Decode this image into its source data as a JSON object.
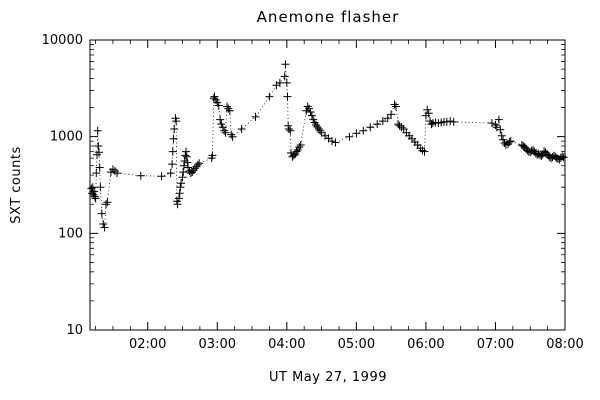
{
  "colors": {
    "foreground": "#000000",
    "background": "#ffffff"
  },
  "chart_data": {
    "type": "scatter",
    "title": "Anemone flasher",
    "xlabel": "UT May 27, 1999",
    "ylabel": "SXT counts",
    "y_scale": "log",
    "xlim": [
      1.17,
      8.0
    ],
    "ylim": [
      10,
      10000
    ],
    "x_ticks": [
      2,
      3,
      4,
      5,
      6,
      7,
      8
    ],
    "x_tick_labels": [
      "02:00",
      "03:00",
      "04:00",
      "05:00",
      "06:00",
      "07:00",
      "08:00"
    ],
    "y_ticks": [
      10,
      100,
      1000,
      10000
    ],
    "y_tick_labels": [
      "10",
      "100",
      "1000",
      "10000"
    ],
    "marker": "plus",
    "line_style": "dotted",
    "legend": "none",
    "grid": false,
    "points": [
      [
        1.19,
        290
      ],
      [
        1.2,
        260
      ],
      [
        1.21,
        300
      ],
      [
        1.22,
        250
      ],
      [
        1.23,
        270
      ],
      [
        1.24,
        240
      ],
      [
        1.25,
        230
      ],
      [
        1.26,
        420
      ],
      [
        1.27,
        650
      ],
      [
        1.28,
        1150
      ],
      [
        1.29,
        800
      ],
      [
        1.3,
        690
      ],
      [
        1.31,
        480
      ],
      [
        1.32,
        300
      ],
      [
        1.34,
        160
      ],
      [
        1.36,
        125
      ],
      [
        1.38,
        115
      ],
      [
        1.4,
        200
      ],
      [
        1.42,
        210
      ],
      [
        1.47,
        430
      ],
      [
        1.5,
        460
      ],
      [
        1.53,
        440
      ],
      [
        1.56,
        420
      ],
      [
        1.9,
        395
      ],
      [
        2.2,
        390
      ],
      [
        2.33,
        420
      ],
      [
        2.35,
        520
      ],
      [
        2.36,
        700
      ],
      [
        2.37,
        950
      ],
      [
        2.38,
        1200
      ],
      [
        2.4,
        1550
      ],
      [
        2.41,
        1450
      ],
      [
        2.42,
        215
      ],
      [
        2.43,
        200
      ],
      [
        2.45,
        230
      ],
      [
        2.46,
        260
      ],
      [
        2.47,
        300
      ],
      [
        2.48,
        330
      ],
      [
        2.5,
        380
      ],
      [
        2.51,
        430
      ],
      [
        2.52,
        500
      ],
      [
        2.53,
        560
      ],
      [
        2.54,
        640
      ],
      [
        2.55,
        700
      ],
      [
        2.56,
        620
      ],
      [
        2.57,
        540
      ],
      [
        2.58,
        480
      ],
      [
        2.6,
        440
      ],
      [
        2.62,
        420
      ],
      [
        2.64,
        430
      ],
      [
        2.66,
        450
      ],
      [
        2.68,
        470
      ],
      [
        2.7,
        490
      ],
      [
        2.72,
        510
      ],
      [
        2.74,
        530
      ],
      [
        2.92,
        600
      ],
      [
        2.93,
        640
      ],
      [
        2.95,
        2500
      ],
      [
        2.96,
        2600
      ],
      [
        2.98,
        2400
      ],
      [
        3.0,
        2250
      ],
      [
        3.02,
        2100
      ],
      [
        3.04,
        1500
      ],
      [
        3.06,
        1350
      ],
      [
        3.08,
        1250
      ],
      [
        3.1,
        1150
      ],
      [
        3.12,
        1100
      ],
      [
        3.14,
        2050
      ],
      [
        3.16,
        1950
      ],
      [
        3.18,
        1850
      ],
      [
        3.2,
        1050
      ],
      [
        3.22,
        1000
      ],
      [
        3.35,
        1200
      ],
      [
        3.55,
        1600
      ],
      [
        3.75,
        2600
      ],
      [
        3.85,
        3400
      ],
      [
        3.9,
        3600
      ],
      [
        3.97,
        4200
      ],
      [
        3.98,
        5600
      ],
      [
        4.0,
        3600
      ],
      [
        4.01,
        2600
      ],
      [
        4.02,
        1300
      ],
      [
        4.03,
        1200
      ],
      [
        4.05,
        1150
      ],
      [
        4.06,
        680
      ],
      [
        4.08,
        620
      ],
      [
        4.1,
        640
      ],
      [
        4.12,
        660
      ],
      [
        4.14,
        700
      ],
      [
        4.16,
        730
      ],
      [
        4.18,
        780
      ],
      [
        4.2,
        820
      ],
      [
        4.28,
        1850
      ],
      [
        4.3,
        2050
      ],
      [
        4.32,
        1950
      ],
      [
        4.34,
        1800
      ],
      [
        4.36,
        1650
      ],
      [
        4.38,
        1500
      ],
      [
        4.4,
        1400
      ],
      [
        4.42,
        1320
      ],
      [
        4.44,
        1260
      ],
      [
        4.46,
        1200
      ],
      [
        4.48,
        1150
      ],
      [
        4.5,
        1100
      ],
      [
        4.55,
        1020
      ],
      [
        4.6,
        960
      ],
      [
        4.65,
        900
      ],
      [
        4.7,
        870
      ],
      [
        4.9,
        1000
      ],
      [
        5.0,
        1080
      ],
      [
        5.1,
        1150
      ],
      [
        5.2,
        1250
      ],
      [
        5.3,
        1350
      ],
      [
        5.38,
        1450
      ],
      [
        5.45,
        1550
      ],
      [
        5.5,
        1700
      ],
      [
        5.55,
        2150
      ],
      [
        5.57,
        2050
      ],
      [
        5.6,
        1350
      ],
      [
        5.62,
        1300
      ],
      [
        5.65,
        1250
      ],
      [
        5.68,
        1200
      ],
      [
        5.72,
        1100
      ],
      [
        5.76,
        1020
      ],
      [
        5.8,
        950
      ],
      [
        5.84,
        880
      ],
      [
        5.88,
        820
      ],
      [
        5.92,
        760
      ],
      [
        5.95,
        720
      ],
      [
        5.98,
        700
      ],
      [
        6.0,
        1650
      ],
      [
        6.02,
        1900
      ],
      [
        6.04,
        1750
      ],
      [
        6.06,
        1450
      ],
      [
        6.08,
        1350
      ],
      [
        6.1,
        1380
      ],
      [
        6.14,
        1400
      ],
      [
        6.18,
        1380
      ],
      [
        6.22,
        1400
      ],
      [
        6.26,
        1420
      ],
      [
        6.3,
        1430
      ],
      [
        6.35,
        1450
      ],
      [
        6.4,
        1420
      ],
      [
        6.95,
        1380
      ],
      [
        7.0,
        1320
      ],
      [
        7.02,
        1250
      ],
      [
        7.05,
        1500
      ],
      [
        7.07,
        1180
      ],
      [
        7.09,
        1020
      ],
      [
        7.11,
        930
      ],
      [
        7.13,
        860
      ],
      [
        7.15,
        820
      ],
      [
        7.18,
        840
      ],
      [
        7.2,
        880
      ],
      [
        7.22,
        900
      ],
      [
        7.38,
        820
      ],
      [
        7.4,
        800
      ],
      [
        7.42,
        780
      ],
      [
        7.44,
        750
      ],
      [
        7.46,
        720
      ],
      [
        7.48,
        700
      ],
      [
        7.5,
        690
      ],
      [
        7.52,
        710
      ],
      [
        7.54,
        730
      ],
      [
        7.56,
        700
      ],
      [
        7.58,
        670
      ],
      [
        7.6,
        650
      ],
      [
        7.62,
        665
      ],
      [
        7.64,
        645
      ],
      [
        7.66,
        630
      ],
      [
        7.68,
        655
      ],
      [
        7.7,
        705
      ],
      [
        7.72,
        685
      ],
      [
        7.74,
        660
      ],
      [
        7.76,
        640
      ],
      [
        7.78,
        615
      ],
      [
        7.8,
        600
      ],
      [
        7.82,
        615
      ],
      [
        7.84,
        635
      ],
      [
        7.86,
        620
      ],
      [
        7.88,
        600
      ],
      [
        7.9,
        590
      ],
      [
        7.92,
        580
      ],
      [
        7.94,
        605
      ],
      [
        7.96,
        625
      ],
      [
        7.98,
        610
      ]
    ]
  }
}
